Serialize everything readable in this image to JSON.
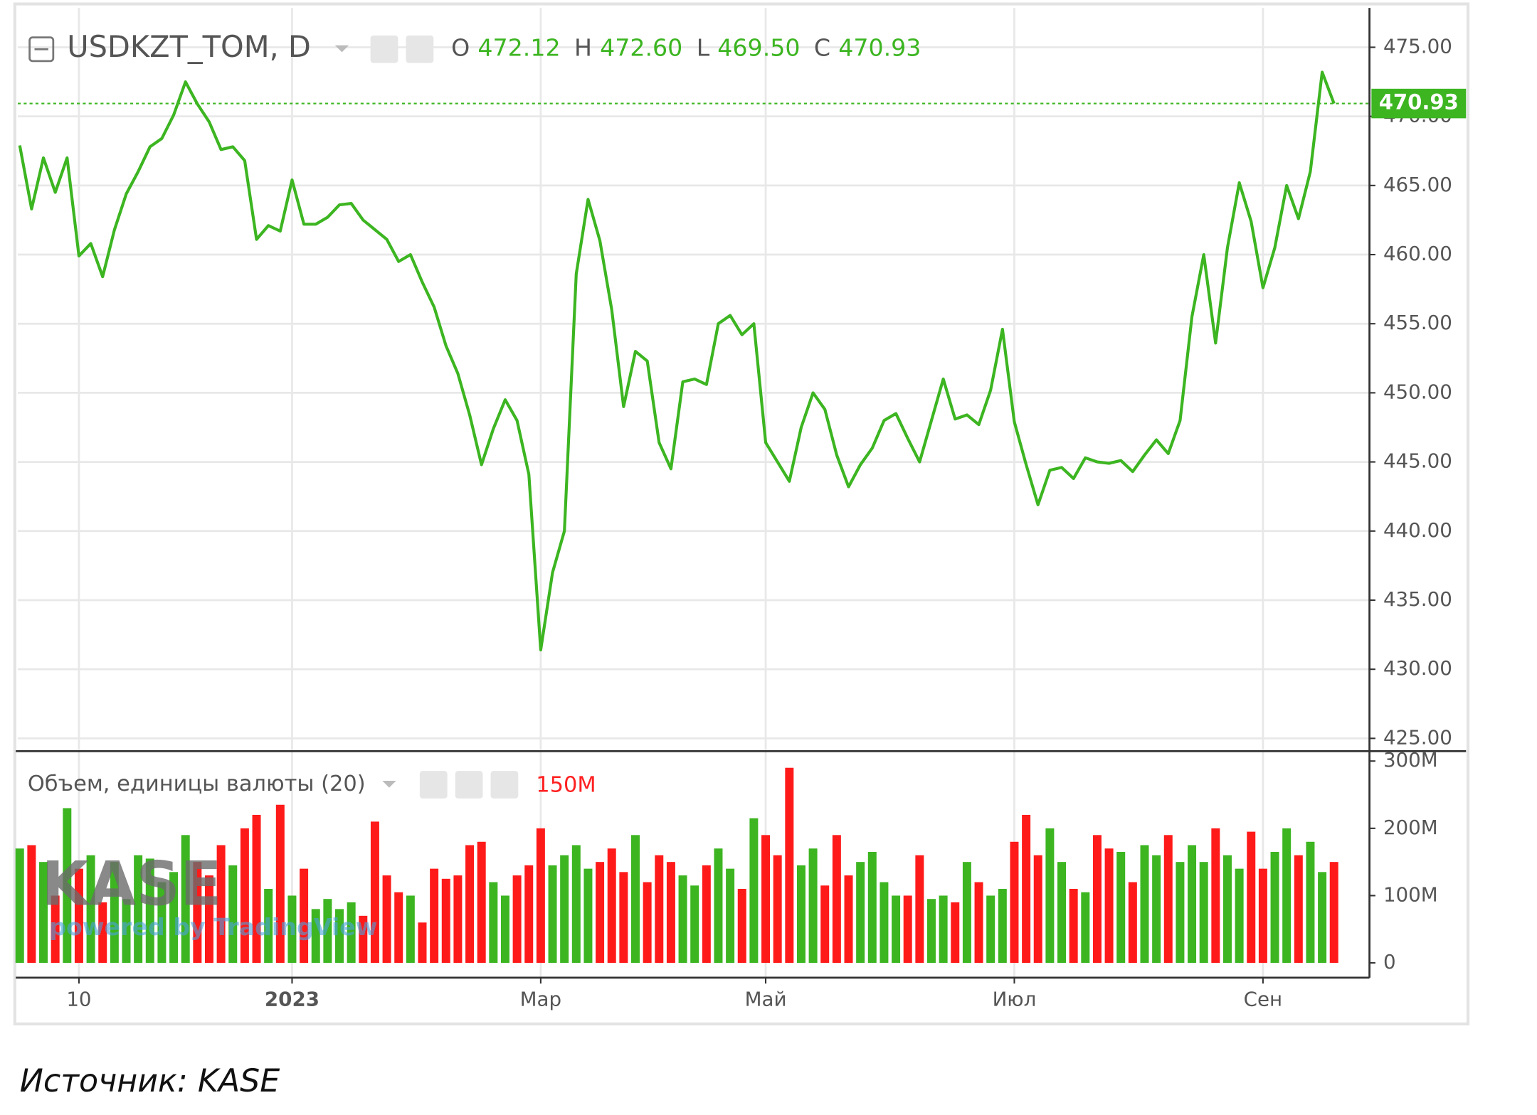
{
  "chart_data": {
    "type": "line",
    "ohlc": [
      {
        "name": "O",
        "value": 472.12
      },
      {
        "name": "H",
        "value": 472.6,
        "label": "472.60"
      },
      {
        "name": "L",
        "value": 469.5,
        "label": "469.50"
      },
      {
        "name": "C",
        "value": 470.93
      }
    ],
    "categories": [
      null,
      null,
      null,
      null,
      null,
      "10",
      null,
      null,
      null,
      null,
      null,
      null,
      null,
      null,
      null,
      null,
      null,
      null,
      null,
      null,
      null,
      null,
      null,
      "2023",
      null,
      null,
      null,
      null,
      null,
      null,
      null,
      null,
      null,
      null,
      null,
      null,
      null,
      null,
      null,
      null,
      null,
      null,
      null,
      null,
      "Мар",
      null,
      null,
      null,
      null,
      null,
      null,
      null,
      null,
      null,
      null,
      null,
      null,
      null,
      null,
      null,
      null,
      null,
      null,
      "Май",
      null,
      null,
      null,
      null,
      null,
      null,
      null,
      null,
      null,
      null,
      null,
      null,
      null,
      null,
      null,
      null,
      null,
      null,
      null,
      null,
      "Июл",
      null,
      null,
      null,
      null,
      null,
      null,
      null,
      null,
      null,
      null,
      null,
      null,
      null,
      null,
      null,
      null,
      null,
      null,
      null,
      null,
      "Сен",
      null,
      null,
      null,
      null,
      null,
      null
    ],
    "series": [
      {
        "name": "USDKZT_TOM, D",
        "color": "#3cb521",
        "values": [
          467.9,
          463.3,
          467.0,
          464.5,
          467.0,
          459.9,
          460.8,
          458.4,
          461.8,
          464.4,
          466.0,
          467.8,
          468.4,
          470.1,
          472.5,
          470.9,
          469.6,
          467.6,
          467.8,
          466.8,
          461.1,
          462.1,
          461.7,
          465.4,
          462.2,
          462.2,
          462.7,
          463.6,
          463.7,
          462.5,
          461.8,
          461.1,
          459.5,
          460.0,
          458.0,
          456.2,
          453.4,
          451.4,
          448.4,
          444.8,
          447.4,
          449.5,
          448.0,
          444.1,
          431.4,
          437.0,
          440.0,
          458.6,
          464.0,
          461.0,
          456.0,
          449.0,
          453.0,
          452.3,
          446.4,
          444.5,
          450.8,
          451.0,
          450.6,
          455.0,
          455.6,
          454.2,
          455.0,
          446.4,
          445.0,
          443.6,
          447.5,
          450.0,
          448.8,
          445.5,
          443.2,
          444.8,
          446.0,
          448.0,
          448.5,
          446.7,
          445.0,
          448.0,
          451.0,
          448.1,
          448.4,
          447.7,
          450.2,
          454.6,
          447.9,
          444.8,
          441.9,
          444.4,
          444.6,
          443.8,
          445.3,
          445.0,
          444.9,
          445.1,
          444.3,
          445.5,
          446.6,
          445.6,
          448.0,
          455.5,
          460.0,
          453.6,
          460.5,
          465.2,
          462.4,
          457.6,
          460.5,
          465.0,
          462.6,
          466.0,
          473.2,
          470.93
        ]
      },
      {
        "name": "Объем, единицы валюты (20)",
        "type": "bar",
        "axis": "y2",
        "color": "#3cb521",
        "down_color": "#ff1a1a",
        "values": [
          170,
          175,
          150,
          100,
          230,
          140,
          160,
          90,
          150,
          95,
          160,
          155,
          120,
          135,
          190,
          150,
          130,
          175,
          145,
          200,
          220,
          110,
          235,
          100,
          140,
          80,
          95,
          80,
          90,
          70,
          210,
          130,
          105,
          100,
          60,
          140,
          125,
          130,
          175,
          180,
          120,
          100,
          130,
          145,
          200,
          145,
          160,
          175,
          140,
          150,
          170,
          135,
          190,
          120,
          160,
          150,
          130,
          115,
          145,
          170,
          140,
          110,
          215,
          190,
          160,
          290,
          145,
          170,
          115,
          190,
          130,
          150,
          165,
          120,
          100,
          100,
          160,
          95,
          100,
          90,
          150,
          120,
          100,
          110,
          180,
          220,
          160,
          200,
          150,
          110,
          105,
          190,
          170,
          165,
          120,
          175,
          160,
          190,
          150,
          175,
          150,
          200,
          160,
          140,
          195,
          140,
          165,
          200,
          160,
          180,
          135,
          150
        ]
      }
    ],
    "ylim": [
      424.1,
      477.7
    ],
    "yticks": [
      {
        "value": 425,
        "label": "425.00"
      },
      {
        "value": 430,
        "label": "430.00"
      },
      {
        "value": 435,
        "label": "435.00"
      },
      {
        "value": 440,
        "label": "440.00"
      },
      {
        "value": 445,
        "label": "445.00"
      },
      {
        "value": 450,
        "label": "450.00"
      },
      {
        "value": 455,
        "label": "455.00"
      },
      {
        "value": 460,
        "label": "460.00"
      },
      {
        "value": 465,
        "label": "465.00"
      },
      {
        "value": 470,
        "label": "470.00"
      },
      {
        "value": 475,
        "label": "475.00"
      }
    ],
    "y2lim": [
      -20.5,
      311.7
    ],
    "y2ticks": [
      0,
      {
        "value": 100,
        "label": "100M"
      },
      {
        "value": 200,
        "label": "200M"
      },
      {
        "value": 300,
        "label": "300M"
      }
    ],
    "grid": true,
    "volume_label": "150M",
    "watermark": "KASE",
    "watermark_sub": "powered by TradingView",
    "source": "Источник: KASE"
  }
}
